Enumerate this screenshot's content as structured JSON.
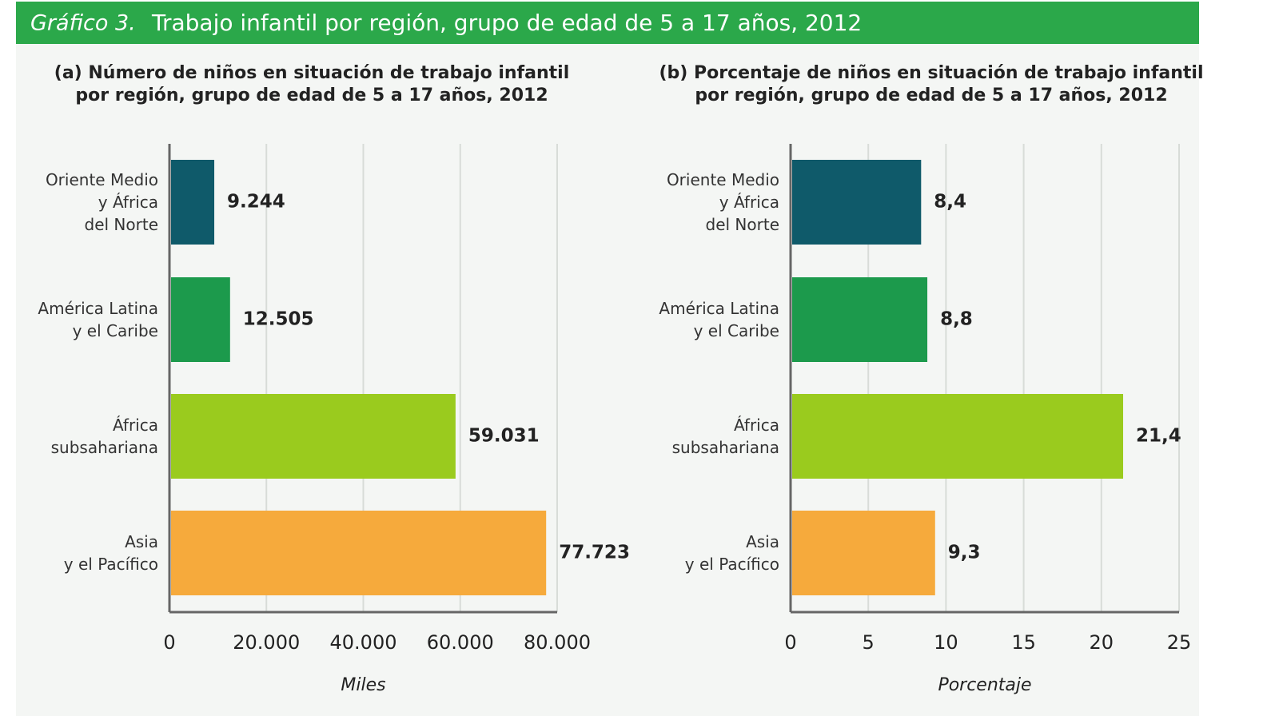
{
  "header": {
    "label": "Gráfico 3.",
    "title": "Trabajo infantil por región, grupo de edad de 5 a 17 años, 2012"
  },
  "chart_data": [
    {
      "type": "bar",
      "orientation": "horizontal",
      "title": "(a) Número de niños en situación de trabajo infantil\npor región, grupo de edad de 5 a 17 años, 2012",
      "categories": [
        "Oriente Medio\ny África\ndel Norte",
        "América Latina\ny el Caribe",
        "África\nsubsahariana",
        "Asia\ny el Pacífico"
      ],
      "values": [
        9244,
        12505,
        59031,
        77723
      ],
      "value_labels": [
        "9.244",
        "12.505",
        "59.031",
        "77.723"
      ],
      "colors": [
        "#0f5a6a",
        "#1c9a4c",
        "#9acb1e",
        "#f6aa3c"
      ],
      "x_label": "Miles",
      "xlim": [
        0,
        80000
      ],
      "xticks": [
        0,
        {
          "value": 20000,
          "label": "20.000"
        },
        {
          "value": 40000,
          "label": "40.000"
        },
        {
          "value": 60000,
          "label": "60.000"
        },
        {
          "value": 80000,
          "label": "80.000"
        }
      ],
      "grid": true
    },
    {
      "type": "bar",
      "orientation": "horizontal",
      "title": "(b) Porcentaje de niños en situación de trabajo infantil\npor región, grupo de edad de 5 a 17 años, 2012",
      "categories": [
        "Oriente Medio\ny África\ndel Norte",
        "América Latina\ny el Caribe",
        "África\nsubsahariana",
        "Asia\ny el Pacífico"
      ],
      "values": [
        8.4,
        8.8,
        21.4,
        9.3
      ],
      "value_labels": [
        "8,4",
        "8,8",
        "21,4",
        "9,3"
      ],
      "colors": [
        "#0f5a6a",
        "#1c9a4c",
        "#9acb1e",
        "#f6aa3c"
      ],
      "x_label": "Porcentaje",
      "xlim": [
        0,
        25
      ],
      "xticks": [
        0,
        5,
        10,
        15,
        20,
        25
      ],
      "grid": true
    }
  ]
}
